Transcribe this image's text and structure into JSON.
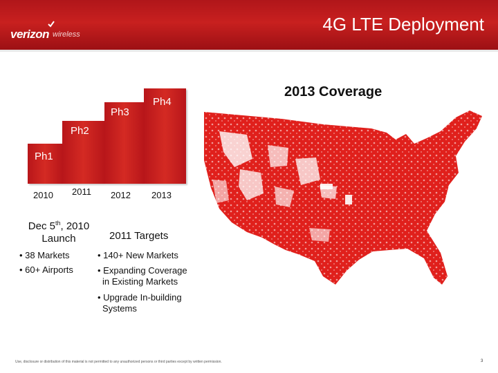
{
  "header": {
    "brand": "verizon",
    "brand_sub": "wireless",
    "title": "4G LTE Deployment"
  },
  "phases": [
    {
      "label": "Ph1",
      "year": "2010"
    },
    {
      "label": "Ph2",
      "year": "2011"
    },
    {
      "label": "Ph3",
      "year": "2012"
    },
    {
      "label": "Ph4",
      "year": "2013"
    }
  ],
  "launch": {
    "heading_pre": "Dec 5",
    "heading_sup": "th",
    "heading_post": ", 2010",
    "heading_line2": "Launch",
    "bullets": [
      "• 38 Markets",
      "• 60+ Airports"
    ]
  },
  "targets": {
    "heading": "2011 Targets",
    "bullets": [
      "• 140+ New Markets",
      "• Expanding Coverage",
      "in Existing Markets",
      "• Upgrade In-building",
      "Systems"
    ]
  },
  "coverage": {
    "title": "2013 Coverage"
  },
  "footer": {
    "disclaimer": "Use, disclosure or distribution of this material is not permitted to any unauthorized persons or third parties except by written permission.",
    "page_number": "3"
  },
  "colors": {
    "accent": "#c8201f",
    "map_fill": "#e0201c"
  }
}
